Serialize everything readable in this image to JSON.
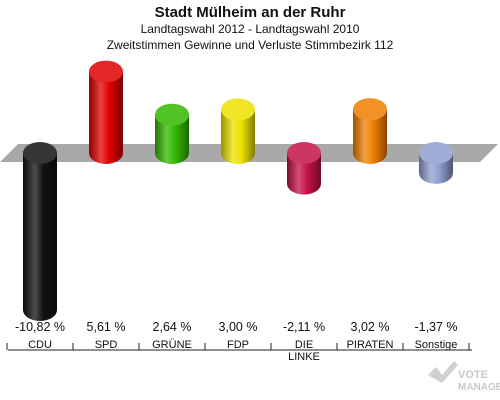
{
  "chart_data": {
    "type": "bar",
    "title": "Stadt Mülheim an der Ruhr",
    "subtitle": "Landtagswahl 2012 - Landtagswahl 2010",
    "subtitle2": "Zweitstimmen Gewinne und Verluste Stimmbezirk 112",
    "categories": [
      "CDU",
      "SPD",
      "GRÜNE",
      "FDP",
      "DIE LINKE",
      "PIRATEN",
      "Sonstige"
    ],
    "values": [
      -10.82,
      5.61,
      2.64,
      3.0,
      -2.11,
      3.02,
      -1.37
    ],
    "value_labels": [
      "-10,82 %",
      "5,61 %",
      "2,64 %",
      "3,00 %",
      "-2,11 %",
      "3,02 %",
      "-1,37 %"
    ],
    "colors": [
      "#111111",
      "#e00000",
      "#33b800",
      "#ede100",
      "#c4114a",
      "#f07f00",
      "#8f9fd0"
    ],
    "ylim": [
      -10.82,
      5.61
    ],
    "grid": false,
    "legend": "none"
  },
  "watermark": {
    "line1": "VOTE",
    "line2": "MANAGER"
  }
}
